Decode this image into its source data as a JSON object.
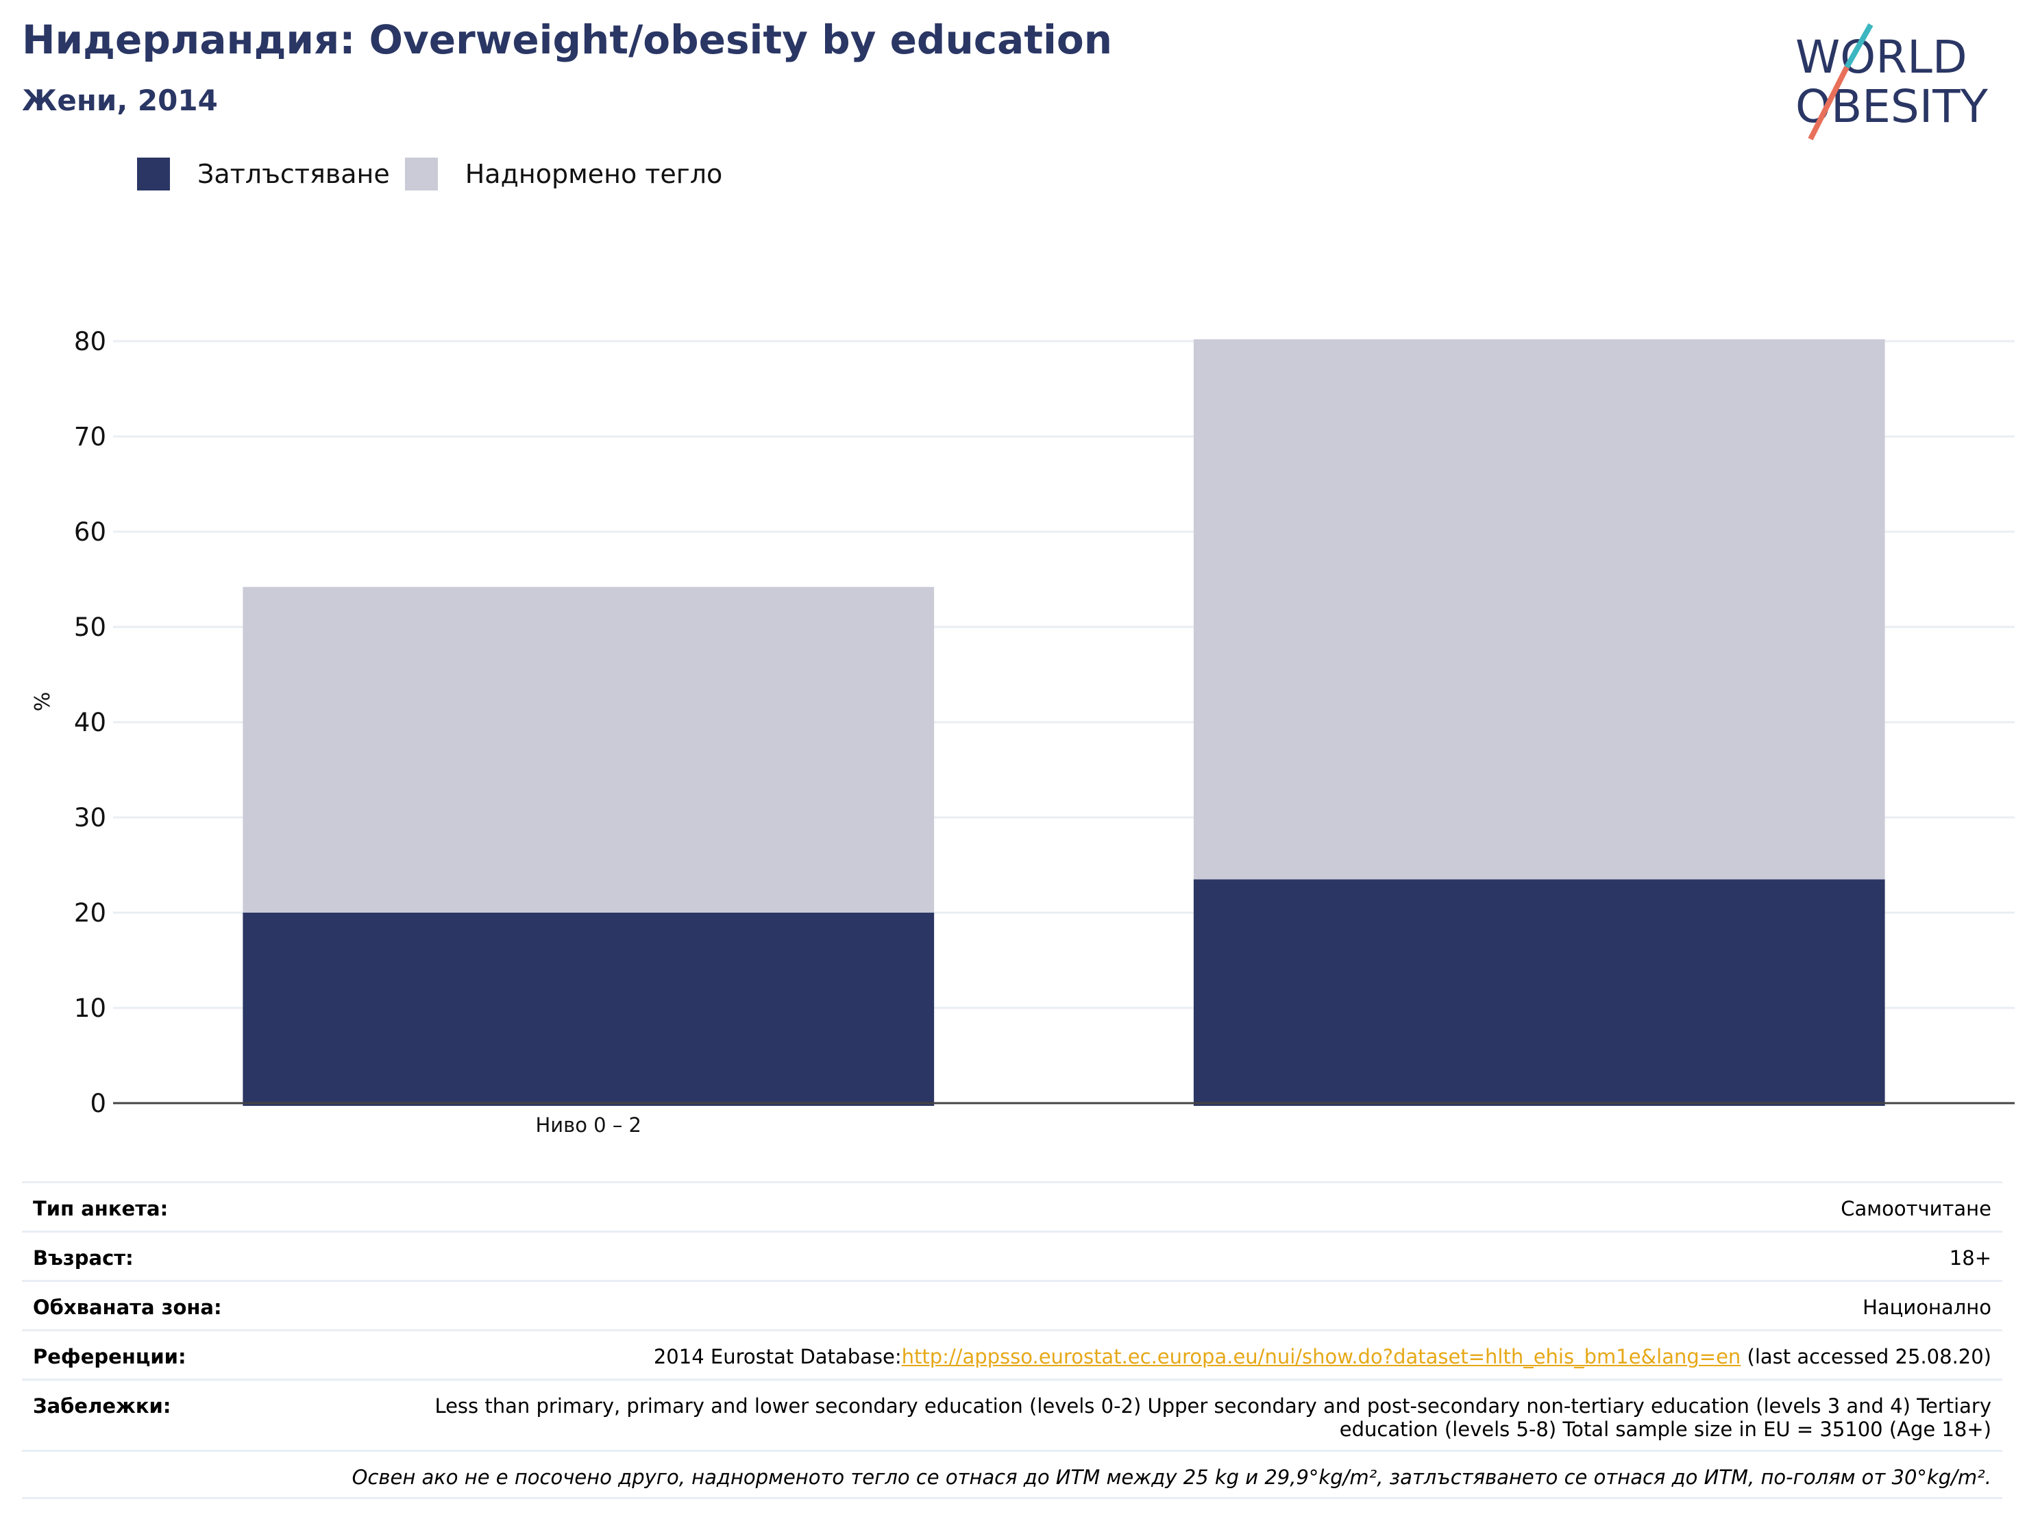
{
  "header": {
    "title": "Нидерландия: Overweight/obesity by education",
    "subtitle": "Жени, 2014"
  },
  "logo": {
    "line1": "WORLD",
    "line2": "OBESITY"
  },
  "colors": {
    "obesity": "#2b3664",
    "overweight": "#cacbd7",
    "accent_teal": "#3cb6c0",
    "accent_coral": "#e8705a",
    "link": "#e6a817"
  },
  "chart_data": {
    "type": "bar",
    "stacked": true,
    "categories": [
      "Ниво 0 – 2",
      ""
    ],
    "series": [
      {
        "name": "Затлъстяване",
        "values": [
          20,
          23.5
        ]
      },
      {
        "name": "Наднормено тегло",
        "values": [
          34.2,
          56.7
        ]
      }
    ],
    "ylabel": "%",
    "ylim": [
      0,
      80
    ],
    "yticks": [
      "0",
      "10",
      "20",
      "30",
      "40",
      "50",
      "60",
      "70",
      "80"
    ],
    "grid": true,
    "legend": "top-left"
  },
  "info": {
    "survey_label": "Тип анкета:",
    "survey_value": "Самоотчитане",
    "age_label": "Възраст:",
    "age_value": "18+",
    "area_label": "Обхваната зона:",
    "area_value": "Национално",
    "refs_label": "Референции:",
    "refs_prefix": "2014 Eurostat Database:",
    "refs_link": "http://appsso.eurostat.ec.europa.eu/nui/show.do?dataset=hlth_ehis_bm1e&lang=en",
    "refs_suffix": " (last accessed 25.08.20)",
    "notes_label": "Забележки:",
    "notes_value": "Less than primary, primary and lower secondary education (levels 0-2) Upper secondary and post-secondary non-tertiary education (levels 3 and 4) Tertiary education (levels 5-8) Total sample size in EU = 35100 (Age 18+)",
    "footnote": "Освен ако не е посочено друго, наднорменото тегло се отнася до ИТМ между 25 kg и 29,9°kg/m², затлъстяването се отнася до ИТМ, по-голям от 30°kg/m²."
  }
}
